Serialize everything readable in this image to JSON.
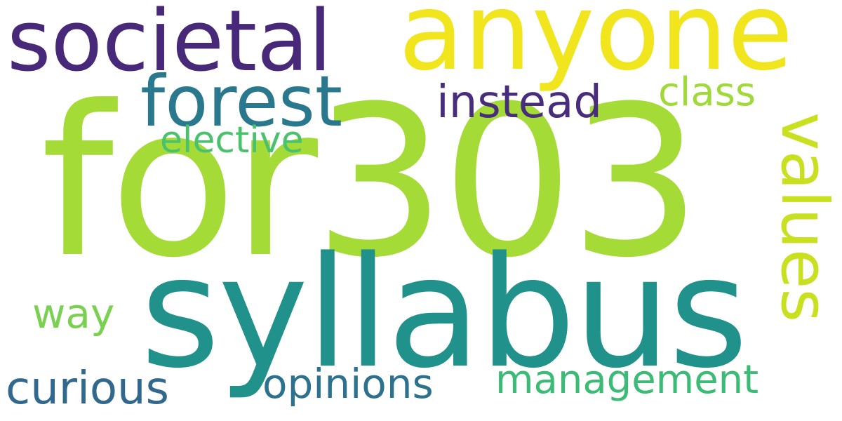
{
  "words": [
    {
      "id": "for303",
      "text": "for303",
      "color": "#a5db36"
    },
    {
      "id": "syllabus",
      "text": "syllabus",
      "color": "#21918c"
    },
    {
      "id": "anyone",
      "text": "anyone",
      "color": "#f1e51d"
    },
    {
      "id": "societal",
      "text": "societal",
      "color": "#482878"
    },
    {
      "id": "forest",
      "text": "forest",
      "color": "#2a788e"
    },
    {
      "id": "values",
      "text": "values",
      "color": "#c8e020"
    },
    {
      "id": "instead",
      "text": "instead",
      "color": "#472d7b"
    },
    {
      "id": "class",
      "text": "class",
      "color": "#a0da39"
    },
    {
      "id": "elective",
      "text": "elective",
      "color": "#4ac16d"
    },
    {
      "id": "way",
      "text": "way",
      "color": "#7ad151"
    },
    {
      "id": "curious",
      "text": "curious",
      "color": "#31688e"
    },
    {
      "id": "opinions",
      "text": "opinions",
      "color": "#2c728e"
    },
    {
      "id": "management",
      "text": "management",
      "color": "#3bbb75"
    }
  ]
}
